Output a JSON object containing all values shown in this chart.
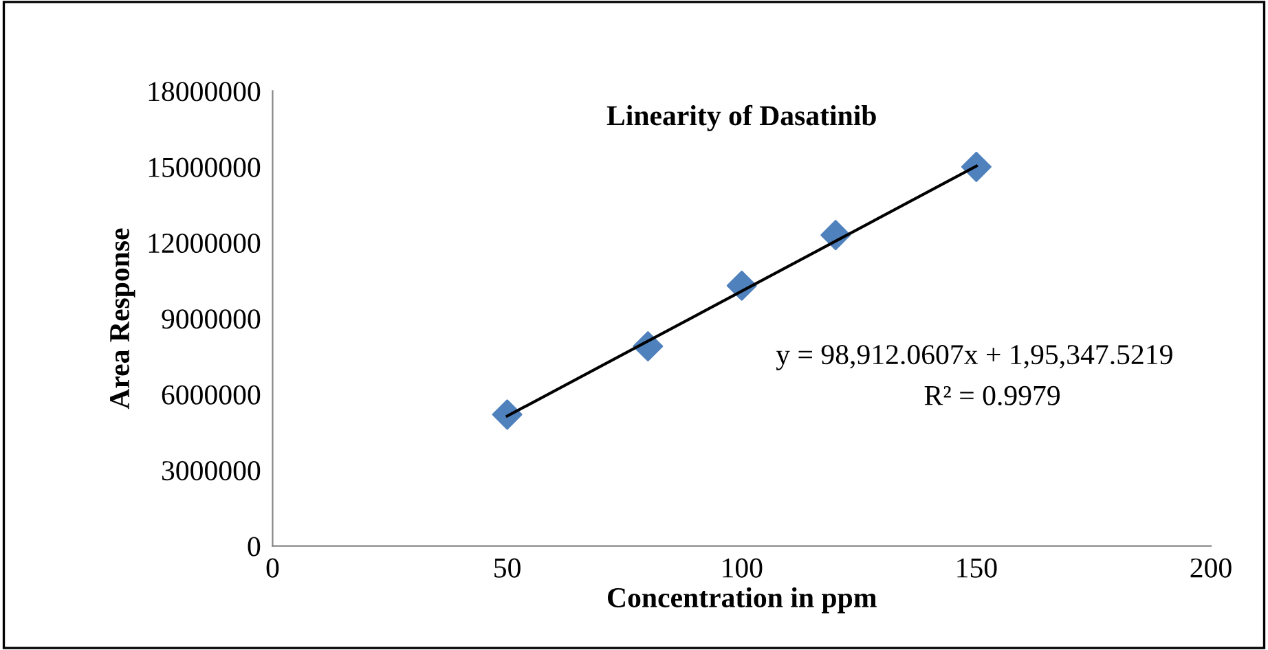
{
  "chart_data": {
    "type": "scatter",
    "title": "Linearity of Dasatinib",
    "xlabel": "Concentration in ppm",
    "ylabel": "Area Response",
    "series": [
      {
        "color": "#4f81bd",
        "marker": "diamond",
        "x": [
          50,
          80,
          100,
          120,
          150
        ],
        "values": [
          5200000,
          7900000,
          10300000,
          12300000,
          15000000
        ]
      },
      {
        "type": "line",
        "color": "#000000",
        "marker": "none",
        "line_style": "solid",
        "x": [
          50,
          150
        ],
        "values": [
          5140000,
          15030000
        ]
      }
    ],
    "annotations": [
      "y = 98,912.0607x + 1,95,347.5219",
      "R² = 0.9979"
    ],
    "xlim": [
      0,
      200
    ],
    "xticks": [
      0,
      50,
      100,
      150,
      200
    ],
    "ylim": [
      0,
      18000000
    ],
    "yticks": [
      0,
      3000000,
      6000000,
      9000000,
      12000000,
      15000000,
      18000000
    ],
    "grid": false,
    "legend": false
  }
}
